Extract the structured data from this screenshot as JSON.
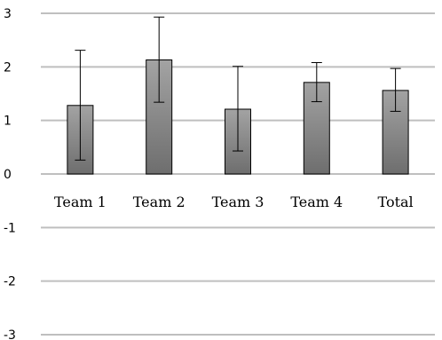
{
  "chart_data": {
    "type": "bar",
    "categories": [
      "Team 1",
      "Team 2",
      "Team 3",
      "Team 4",
      "Total"
    ],
    "values": [
      1.28,
      2.13,
      1.21,
      1.71,
      1.56
    ],
    "error_bars": [
      {
        "low": 0.26,
        "high": 2.31
      },
      {
        "low": 1.34,
        "high": 2.93
      },
      {
        "low": 0.43,
        "high": 2.01
      },
      {
        "low": 1.35,
        "high": 2.08
      },
      {
        "low": 1.17,
        "high": 1.97
      }
    ],
    "ylim": [
      -3,
      3
    ],
    "yticks": [
      "3",
      "2",
      "1",
      "0",
      "-1",
      "-2",
      "-3"
    ],
    "title": "",
    "xlabel": "",
    "ylabel": "",
    "grid": true,
    "legend": "none",
    "colors": {
      "bar_top": "#a3a3a3",
      "bar_bottom": "#6e6e6e",
      "bar_stroke": "#000000",
      "grid": "#bfbfbf",
      "error": "#000000"
    }
  }
}
